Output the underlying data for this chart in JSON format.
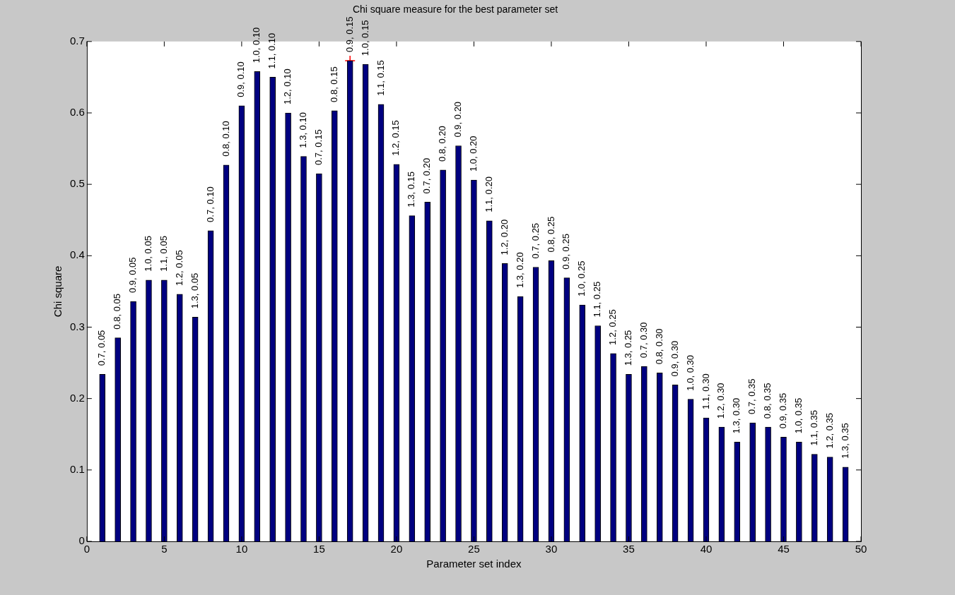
{
  "chart_data": {
    "type": "bar",
    "title": "Chi square measure for the best parameter set",
    "xlabel": "Parameter set index",
    "ylabel": "Chi square",
    "x": [
      1,
      2,
      3,
      4,
      5,
      6,
      7,
      8,
      9,
      10,
      11,
      12,
      13,
      14,
      15,
      16,
      17,
      18,
      19,
      20,
      21,
      22,
      23,
      24,
      25,
      26,
      27,
      28,
      29,
      30,
      31,
      32,
      33,
      34,
      35,
      36,
      37,
      38,
      39,
      40,
      41,
      42,
      43,
      44,
      45,
      46,
      47,
      48,
      49
    ],
    "series": [
      {
        "color": "#000080",
        "values": [
          0.234,
          0.285,
          0.336,
          0.366,
          0.366,
          0.346,
          0.314,
          0.435,
          0.527,
          0.61,
          0.658,
          0.65,
          0.6,
          0.539,
          0.515,
          0.603,
          0.673,
          0.668,
          0.612,
          0.528,
          0.456,
          0.475,
          0.52,
          0.554,
          0.506,
          0.449,
          0.389,
          0.343,
          0.384,
          0.393,
          0.369,
          0.331,
          0.302,
          0.263,
          0.234,
          0.245,
          0.236,
          0.219,
          0.199,
          0.173,
          0.16,
          0.139,
          0.166,
          0.16,
          0.146,
          0.139,
          0.122,
          0.118,
          0.104
        ]
      },
      {
        "type": "scatter",
        "color": "#ff0000",
        "marker": "cross",
        "x": [
          17
        ],
        "values": [
          0.673
        ]
      }
    ],
    "xlim": [
      0,
      50
    ],
    "xticks": [
      0,
      5,
      10,
      15,
      20,
      25,
      30,
      35,
      40,
      45,
      50
    ],
    "ylim": [
      0,
      0.7
    ],
    "yticks": [
      0,
      0.1,
      0.2,
      0.3,
      0.4,
      0.5,
      0.6,
      0.7
    ],
    "grid": false,
    "legend": false,
    "annotations": [
      {
        "text": "0.7, 0.05",
        "x": 1,
        "y": 0.234
      },
      {
        "text": "0.8, 0.05",
        "x": 2,
        "y": 0.285
      },
      {
        "text": "0.9, 0.05",
        "x": 3,
        "y": 0.336
      },
      {
        "text": "1.0, 0.05",
        "x": 4,
        "y": 0.366
      },
      {
        "text": "1.1, 0.05",
        "x": 5,
        "y": 0.366
      },
      {
        "text": "1.2, 0.05",
        "x": 6,
        "y": 0.346
      },
      {
        "text": "1.3, 0.05",
        "x": 7,
        "y": 0.314
      },
      {
        "text": "0.7, 0.10",
        "x": 8,
        "y": 0.435
      },
      {
        "text": "0.8, 0.10",
        "x": 9,
        "y": 0.527
      },
      {
        "text": "0.9, 0.10",
        "x": 10,
        "y": 0.61
      },
      {
        "text": "1.0, 0.10",
        "x": 11,
        "y": 0.658
      },
      {
        "text": "1.1, 0.10",
        "x": 12,
        "y": 0.65
      },
      {
        "text": "1.2, 0.10",
        "x": 13,
        "y": 0.6
      },
      {
        "text": "1.3, 0.10",
        "x": 14,
        "y": 0.539
      },
      {
        "text": "0.7, 0.15",
        "x": 15,
        "y": 0.515
      },
      {
        "text": "0.8, 0.15",
        "x": 16,
        "y": 0.603
      },
      {
        "text": "0.9, 0.15",
        "x": 17,
        "y": 0.673
      },
      {
        "text": "1.0, 0.15",
        "x": 18,
        "y": 0.668
      },
      {
        "text": "1.1, 0.15",
        "x": 19,
        "y": 0.612
      },
      {
        "text": "1.2, 0.15",
        "x": 20,
        "y": 0.528
      },
      {
        "text": "1.3, 0.15",
        "x": 21,
        "y": 0.456
      },
      {
        "text": "0.7, 0.20",
        "x": 22,
        "y": 0.475
      },
      {
        "text": "0.8, 0.20",
        "x": 23,
        "y": 0.52
      },
      {
        "text": "0.9, 0.20",
        "x": 24,
        "y": 0.554
      },
      {
        "text": "1.0, 0.20",
        "x": 25,
        "y": 0.506
      },
      {
        "text": "1.1, 0.20",
        "x": 26,
        "y": 0.449
      },
      {
        "text": "1.2, 0.20",
        "x": 27,
        "y": 0.389
      },
      {
        "text": "1.3, 0.20",
        "x": 28,
        "y": 0.343
      },
      {
        "text": "0.7, 0.25",
        "x": 29,
        "y": 0.384
      },
      {
        "text": "0.8, 0.25",
        "x": 30,
        "y": 0.393
      },
      {
        "text": "0.9, 0.25",
        "x": 31,
        "y": 0.369
      },
      {
        "text": "1.0, 0.25",
        "x": 32,
        "y": 0.331
      },
      {
        "text": "1.1, 0.25",
        "x": 33,
        "y": 0.302
      },
      {
        "text": "1.2, 0.25",
        "x": 34,
        "y": 0.263
      },
      {
        "text": "1.3, 0.25",
        "x": 35,
        "y": 0.234
      },
      {
        "text": "0.7, 0.30",
        "x": 36,
        "y": 0.245
      },
      {
        "text": "0.8, 0.30",
        "x": 37,
        "y": 0.236
      },
      {
        "text": "0.9, 0.30",
        "x": 38,
        "y": 0.219
      },
      {
        "text": "1.0, 0.30",
        "x": 39,
        "y": 0.199
      },
      {
        "text": "1.1, 0.30",
        "x": 40,
        "y": 0.173
      },
      {
        "text": "1.2, 0.30",
        "x": 41,
        "y": 0.16
      },
      {
        "text": "1.3, 0.30",
        "x": 42,
        "y": 0.139
      },
      {
        "text": "0.7, 0.35",
        "x": 43,
        "y": 0.166
      },
      {
        "text": "0.8, 0.35",
        "x": 44,
        "y": 0.16
      },
      {
        "text": "0.9, 0.35",
        "x": 45,
        "y": 0.146
      },
      {
        "text": "1.0, 0.35",
        "x": 46,
        "y": 0.139
      },
      {
        "text": "1.1, 0.35",
        "x": 47,
        "y": 0.122
      },
      {
        "text": "1.2, 0.35",
        "x": 48,
        "y": 0.118
      },
      {
        "text": "1.3, 0.35",
        "x": 49,
        "y": 0.104
      }
    ]
  }
}
